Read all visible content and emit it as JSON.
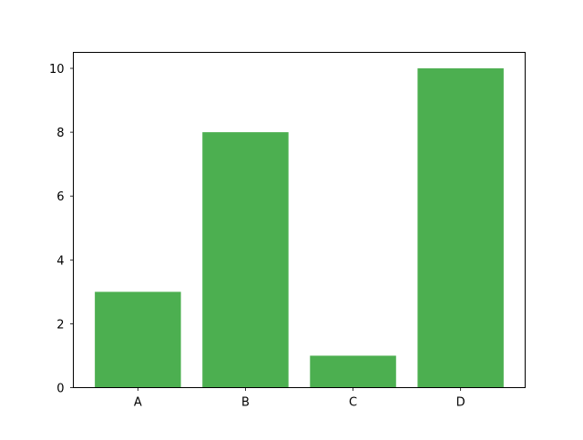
{
  "chart_data": {
    "type": "bar",
    "categories": [
      "A",
      "B",
      "C",
      "D"
    ],
    "values": [
      3,
      8,
      1,
      10
    ],
    "title": "",
    "xlabel": "",
    "ylabel": "",
    "ylim": [
      0,
      10.5
    ],
    "yticks": [
      0,
      2,
      4,
      6,
      8,
      10
    ],
    "grid": false,
    "bar_color": "#4caf50"
  }
}
